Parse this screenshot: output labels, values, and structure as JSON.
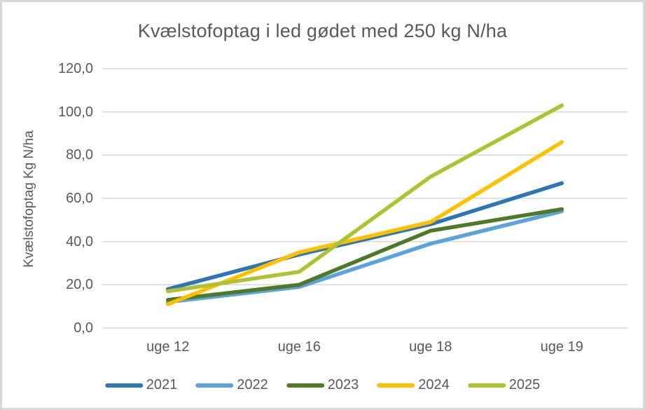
{
  "window": {
    "background": "#FFFFFF",
    "border_color": "#D8D8D8"
  },
  "chart_data": {
    "type": "line",
    "title": "Kvælstofoptag i led gødet med 250 kg N/ha",
    "ylabel": "Kvælstofoptag Kg N/ha",
    "xlabel": "",
    "categories": [
      "uge 12",
      "uge 16",
      "uge 18",
      "uge 19"
    ],
    "series": [
      {
        "name": "2021",
        "color": "#2E75B6",
        "values": [
          18,
          34,
          48,
          67
        ]
      },
      {
        "name": "2022",
        "color": "#5BA3DC",
        "values": [
          12,
          19,
          39,
          54
        ]
      },
      {
        "name": "2023",
        "color": "#4E7A28",
        "values": [
          13,
          20,
          45,
          55
        ]
      },
      {
        "name": "2024",
        "color": "#FFC000",
        "values": [
          11,
          35,
          49,
          86
        ]
      },
      {
        "name": "2025",
        "color": "#AFC332",
        "values": [
          17,
          26,
          70,
          103
        ]
      }
    ],
    "ylim": [
      0,
      120
    ],
    "ytick_step": 20,
    "ytick_labels": [
      "0,0",
      "20,0",
      "40,0",
      "60,0",
      "80,0",
      "100,0",
      "120,0"
    ],
    "grid": true,
    "grid_color": "#D9D9D9",
    "text_color": "#595959",
    "legend_position": "bottom",
    "line_width": 5.5
  }
}
